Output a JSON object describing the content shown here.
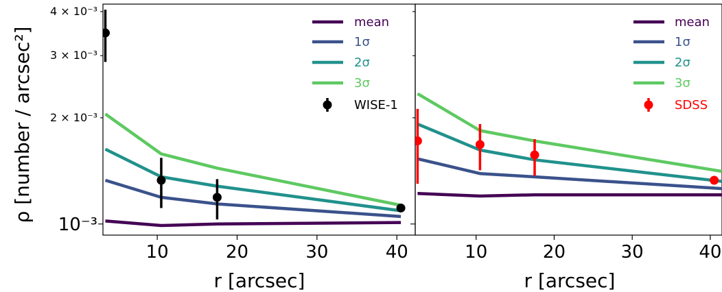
{
  "chart_data": [
    {
      "type": "line",
      "xlabel": "r [arcsec]",
      "ylabel": "ρ [number / arcsec²]",
      "yscale": "log",
      "xlim": [
        3.2,
        42.3
      ],
      "ylim": [
        0.00093,
        0.0042
      ],
      "xticks": [
        10,
        20,
        30,
        40
      ],
      "yticks": [
        {
          "value": 0.001,
          "label": "10⁻³",
          "major": true
        },
        {
          "value": 0.002,
          "label": "2 × 10⁻³",
          "major": false
        },
        {
          "value": 0.003,
          "label": "3 × 10⁻³",
          "major": false
        },
        {
          "value": 0.004,
          "label": "4 × 10⁻³",
          "major": false
        }
      ],
      "grid": false,
      "legend_position": "top-right",
      "x": [
        3.5,
        10.5,
        17.5,
        40.5
      ],
      "series": [
        {
          "name": "mean",
          "color": "#440154",
          "values": [
            0.00102,
            0.00099,
            0.001,
            0.00101
          ]
        },
        {
          "name": "1σ",
          "color": "#3b528b",
          "values": [
            0.00133,
            0.00119,
            0.00114,
            0.00105
          ]
        },
        {
          "name": "2σ",
          "color": "#21918c",
          "values": [
            0.00163,
            0.00136,
            0.00128,
            0.00109
          ]
        },
        {
          "name": "3σ",
          "color": "#5ec962",
          "values": [
            0.00205,
            0.00158,
            0.00144,
            0.00113
          ]
        }
      ],
      "points": {
        "name": "WISE-1",
        "color": "#000000",
        "x": [
          3.5,
          10.5,
          17.5,
          40.5
        ],
        "y": [
          0.00348,
          0.00133,
          0.00119,
          0.00111
        ],
        "yerr_low": [
          0.00288,
          0.00111,
          0.00103,
          0.00108
        ],
        "yerr_high": [
          0.00405,
          0.00154,
          0.00134,
          0.00114
        ]
      }
    },
    {
      "type": "line",
      "xlabel": "r [arcsec]",
      "ylabel": "",
      "yscale": "log",
      "xlim": [
        2.2,
        41.5
      ],
      "ylim": [
        0.00093,
        0.0042
      ],
      "xticks": [
        10,
        20,
        30,
        40
      ],
      "grid": false,
      "legend_position": "top-right",
      "x": [
        2.5,
        10.5,
        17.5,
        41.5
      ],
      "series": [
        {
          "name": "mean",
          "color": "#440154",
          "values": [
            0.00122,
            0.0012,
            0.00121,
            0.00121
          ]
        },
        {
          "name": "1σ",
          "color": "#3b528b",
          "values": [
            0.00153,
            0.00139,
            0.00136,
            0.00126
          ]
        },
        {
          "name": "2σ",
          "color": "#21918c",
          "values": [
            0.00192,
            0.00162,
            0.00152,
            0.00132
          ]
        },
        {
          "name": "3σ",
          "color": "#5ec962",
          "values": [
            0.00234,
            0.00184,
            0.00172,
            0.00141
          ]
        }
      ],
      "points": {
        "name": "SDSS",
        "color": "#ff0000",
        "x": [
          2.5,
          10.5,
          17.5,
          40.5
        ],
        "y": [
          0.00172,
          0.00168,
          0.00157,
          0.00133
        ],
        "yerr_low": [
          0.0013,
          0.00142,
          0.00137,
          0.00133
        ],
        "yerr_high": [
          0.00212,
          0.00192,
          0.00174,
          0.00133
        ]
      }
    }
  ]
}
